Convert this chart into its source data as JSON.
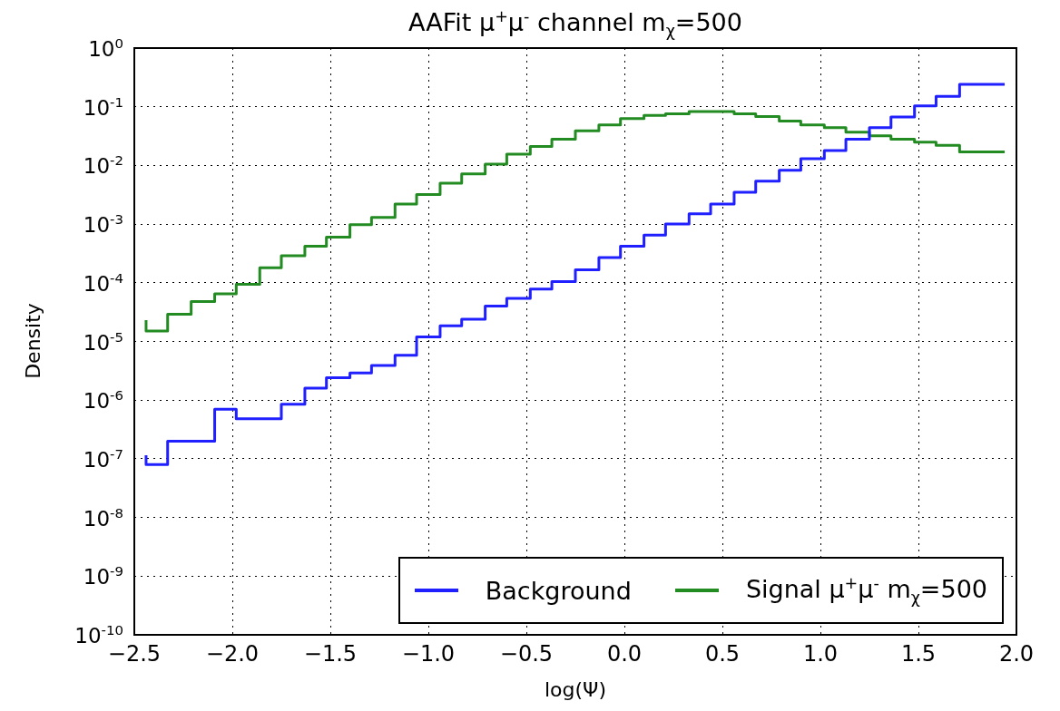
{
  "chart_data": {
    "type": "step",
    "title": "AAFit μ$^{+}$μ$^{-}$ channel m$_{χ}$=500",
    "xlabel": "log(Ψ)",
    "ylabel": "Density",
    "x": [
      -2.44,
      -2.33,
      -2.21,
      -2.09,
      -1.98,
      -1.86,
      -1.75,
      -1.63,
      -1.52,
      -1.4,
      -1.29,
      -1.17,
      -1.06,
      -0.94,
      -0.83,
      -0.71,
      -0.6,
      -0.48,
      -0.37,
      -0.25,
      -0.13,
      -0.02,
      0.1,
      0.21,
      0.33,
      0.44,
      0.56,
      0.67,
      0.79,
      0.9,
      1.02,
      1.13,
      1.25,
      1.36,
      1.48,
      1.59,
      1.71,
      1.82,
      1.94
    ],
    "series": [
      {
        "name": "Background",
        "color": "#1f1fff",
        "values": [
          1.15e-07,
          8e-08,
          2e-07,
          2e-07,
          7e-07,
          4.8e-07,
          4.8e-07,
          8.5e-07,
          1.6e-06,
          2.4e-06,
          2.9e-06,
          3.9e-06,
          5.8e-06,
          1.2e-05,
          1.85e-05,
          2.4e-05,
          4e-05,
          5.4e-05,
          7.8e-05,
          0.000105,
          0.000166,
          0.00027,
          0.00042,
          0.00065,
          0.001,
          0.0015,
          0.0022,
          0.0035,
          0.0054,
          0.0083,
          0.013,
          0.018,
          0.028,
          0.044,
          0.067,
          0.103,
          0.15,
          0.24,
          0.24
        ]
      },
      {
        "name": "Signal μ$^{+}$μ$^{-}$  m$_{χ}$=500",
        "color": "#228b22",
        "values": [
          2.3e-05,
          1.5e-05,
          2.9e-05,
          4.8e-05,
          6.5e-05,
          9.4e-05,
          0.00018,
          0.00029,
          0.00042,
          0.0006,
          0.00098,
          0.0013,
          0.0022,
          0.0032,
          0.005,
          0.0072,
          0.0105,
          0.0155,
          0.021,
          0.028,
          0.039,
          0.049,
          0.063,
          0.071,
          0.076,
          0.083,
          0.083,
          0.076,
          0.068,
          0.057,
          0.049,
          0.044,
          0.037,
          0.032,
          0.028,
          0.025,
          0.022,
          0.017,
          0.017
        ]
      }
    ],
    "xlim": [
      -2.5,
      2.0
    ],
    "xticks": [
      {
        "value": -2.5,
        "label": "−2.5"
      },
      {
        "value": -2.0,
        "label": "−2.0"
      },
      {
        "value": -1.5,
        "label": "−1.5"
      },
      {
        "value": -1.0,
        "label": "−1.0"
      },
      {
        "value": -0.5,
        "label": "−0.5"
      },
      {
        "value": 0,
        "label": "0.0"
      },
      {
        "value": 0.5,
        "label": "0.5"
      },
      {
        "value": 1.0,
        "label": "1.0"
      },
      {
        "value": 1.5,
        "label": "1.5"
      },
      {
        "value": 2.0,
        "label": "2.0"
      }
    ],
    "ylim": [
      1e-10,
      1
    ],
    "yticks": [
      {
        "value": 1e-10,
        "label": "10$^{-10}$"
      },
      {
        "value": 1e-09,
        "label": "10$^{-9}$"
      },
      {
        "value": 1e-08,
        "label": "10$^{-8}$"
      },
      {
        "value": 1e-07,
        "label": "10$^{-7}$"
      },
      {
        "value": 1e-06,
        "label": "10$^{-6}$"
      },
      {
        "value": 1e-05,
        "label": "10$^{-5}$"
      },
      {
        "value": 0.0001,
        "label": "10$^{-4}$"
      },
      {
        "value": 0.001,
        "label": "10$^{-3}$"
      },
      {
        "value": 0.01,
        "label": "10$^{-2}$"
      },
      {
        "value": 0.1,
        "label": "10$^{-1}$"
      },
      {
        "value": 1,
        "label": "10$^{0}$"
      }
    ],
    "log": "y",
    "grid": true,
    "legend": "bottom right",
    "line_style": "solid",
    "marker": "none"
  }
}
